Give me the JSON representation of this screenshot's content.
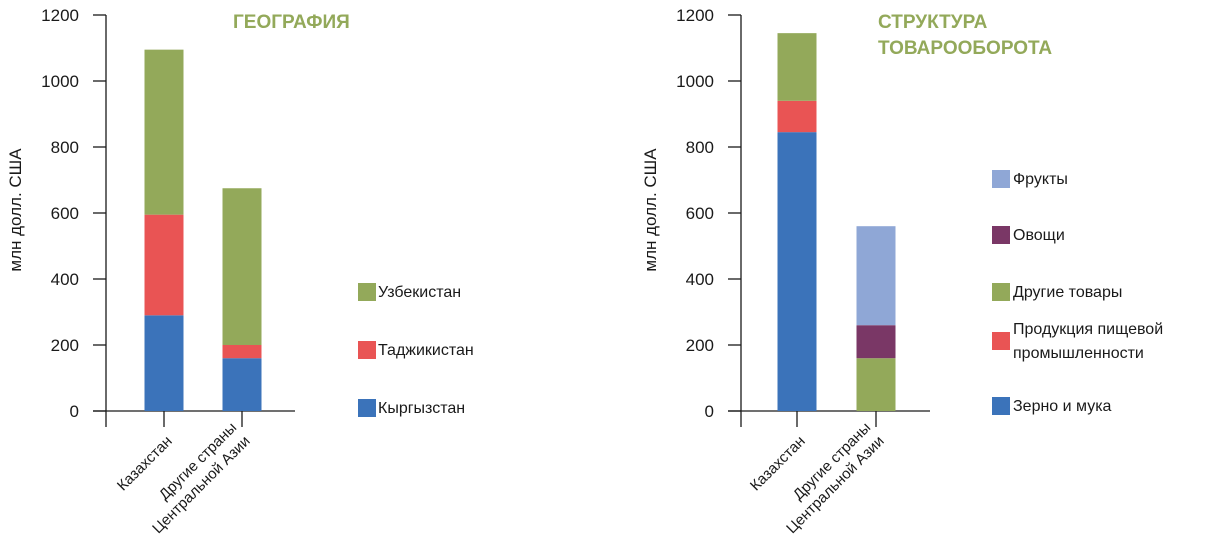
{
  "chart_data": [
    {
      "type": "bar",
      "stacked": true,
      "title": [
        "ГЕОГРАФИЯ"
      ],
      "title_color": "#93a95a",
      "ylabel": "млн долл. США",
      "yticks": [
        "0",
        "200",
        "400",
        "600",
        "800",
        "1000",
        "1200"
      ],
      "ylim": [
        0,
        1200
      ],
      "categories": [
        [
          "Казахстан"
        ],
        [
          "Другие страны",
          "Центральной Азии"
        ]
      ],
      "series": [
        {
          "name": "Кыргызстан",
          "color": "#3b73ba",
          "values": [
            290,
            160
          ]
        },
        {
          "name": "Таджикистан",
          "color": "#e95454",
          "values": [
            305,
            40
          ]
        },
        {
          "name": "Узбекистан",
          "color": "#93a95a",
          "values": [
            500,
            475
          ]
        }
      ],
      "legend": [
        {
          "label": [
            "Узбекистан"
          ],
          "color": "#93a95a"
        },
        {
          "label": [
            "Таджикистан"
          ],
          "color": "#e95454"
        },
        {
          "label": [
            "Кыргызстан"
          ],
          "color": "#3b73ba"
        }
      ]
    },
    {
      "type": "bar",
      "stacked": true,
      "title": [
        "СТРУКТУРА",
        "ТОВАРООБОРОТА"
      ],
      "title_color": "#93a95a",
      "ylabel": "млн долл. США",
      "yticks": [
        "0",
        "200",
        "400",
        "600",
        "800",
        "1000",
        "1200"
      ],
      "ylim": [
        0,
        1200
      ],
      "categories": [
        [
          "Казахстан"
        ],
        [
          "Другие страны",
          "Центральной Азии"
        ]
      ],
      "series": [
        {
          "name": "Зерно и мука",
          "color": "#3b73ba",
          "values": [
            845,
            0
          ]
        },
        {
          "name": "Продукция пищевой промышленности",
          "color": "#e95454",
          "values": [
            95,
            0
          ]
        },
        {
          "name": "Другие товары",
          "color": "#93a95a",
          "values": [
            205,
            160
          ]
        },
        {
          "name": "Овощи",
          "color": "#7a3766",
          "values": [
            0,
            100
          ]
        },
        {
          "name": "Фрукты",
          "color": "#8fa7d6",
          "values": [
            0,
            300
          ]
        }
      ],
      "legend": [
        {
          "label": [
            "Фрукты"
          ],
          "color": "#8fa7d6"
        },
        {
          "label": [
            "Овощи"
          ],
          "color": "#7a3766"
        },
        {
          "label": [
            "Другие товары"
          ],
          "color": "#93a95a"
        },
        {
          "label": [
            "Продукция пищевой",
            "промышленности"
          ],
          "color": "#e95454"
        },
        {
          "label": [
            "Зерно и мука"
          ],
          "color": "#3b73ba"
        }
      ]
    }
  ]
}
